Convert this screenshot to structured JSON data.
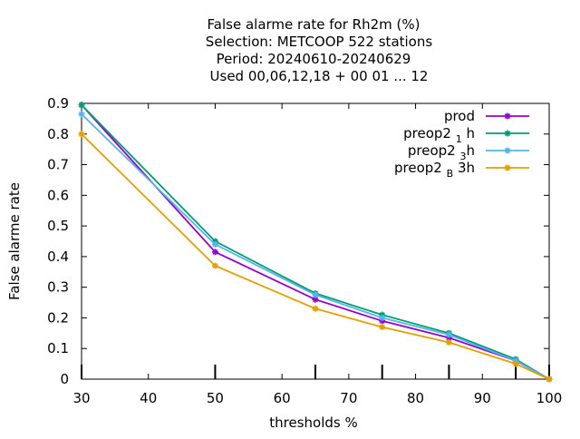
{
  "chart_data": {
    "type": "line",
    "title_lines": [
      "False alarme rate  for Rh2m (%)",
      "Selection: METCOOP    522 stations",
      "Period: 20240610-20240629",
      "Used  00,06,12,18 + 00 01 ... 12"
    ],
    "xlabel": "thresholds %",
    "ylabel": "False alarme rate",
    "xlim": [
      30,
      100
    ],
    "ylim": [
      0,
      0.9
    ],
    "x_ticks": [
      "30",
      "40",
      "50",
      "60",
      "70",
      "80",
      "90",
      "100"
    ],
    "y_ticks": [
      "0",
      "0.1",
      "0.2",
      "0.3",
      "0.4",
      "0.5",
      "0.6",
      "0.7",
      "0.8",
      "0.9"
    ],
    "grid": false,
    "legend_position": "top-right",
    "obs_counts_marker_x": [
      30,
      50,
      65,
      75,
      85,
      95,
      100
    ],
    "series": [
      {
        "name": "prod",
        "name_main": "prod",
        "name_sub": "",
        "name_tail": "",
        "color": "#9400d3",
        "x": [
          30,
          50,
          65,
          75,
          85,
          95,
          100
        ],
        "values": [
          0.895,
          0.415,
          0.26,
          0.19,
          0.135,
          0.06,
          0.0
        ]
      },
      {
        "name": "preop2 1 h",
        "name_main": "preop2 ",
        "name_sub": "1",
        "name_tail": " h",
        "color": "#009e73",
        "x": [
          30,
          50,
          65,
          75,
          85,
          95,
          100
        ],
        "values": [
          0.895,
          0.45,
          0.28,
          0.21,
          0.15,
          0.065,
          0.0
        ]
      },
      {
        "name": "preop2 3 h",
        "name_main": "preop2 ",
        "name_sub": "3",
        "name_tail": "h",
        "color": "#56b4e9",
        "x": [
          30,
          50,
          65,
          75,
          85,
          95,
          100
        ],
        "values": [
          0.865,
          0.44,
          0.275,
          0.2,
          0.145,
          0.06,
          0.0
        ]
      },
      {
        "name": "preop2 B 3h",
        "name_main": "preop2 ",
        "name_sub": "B",
        "name_tail": " 3h",
        "color": "#e69f00",
        "x": [
          30,
          50,
          65,
          75,
          85,
          95,
          100
        ],
        "values": [
          0.8,
          0.37,
          0.23,
          0.17,
          0.12,
          0.05,
          0.0
        ]
      }
    ]
  }
}
